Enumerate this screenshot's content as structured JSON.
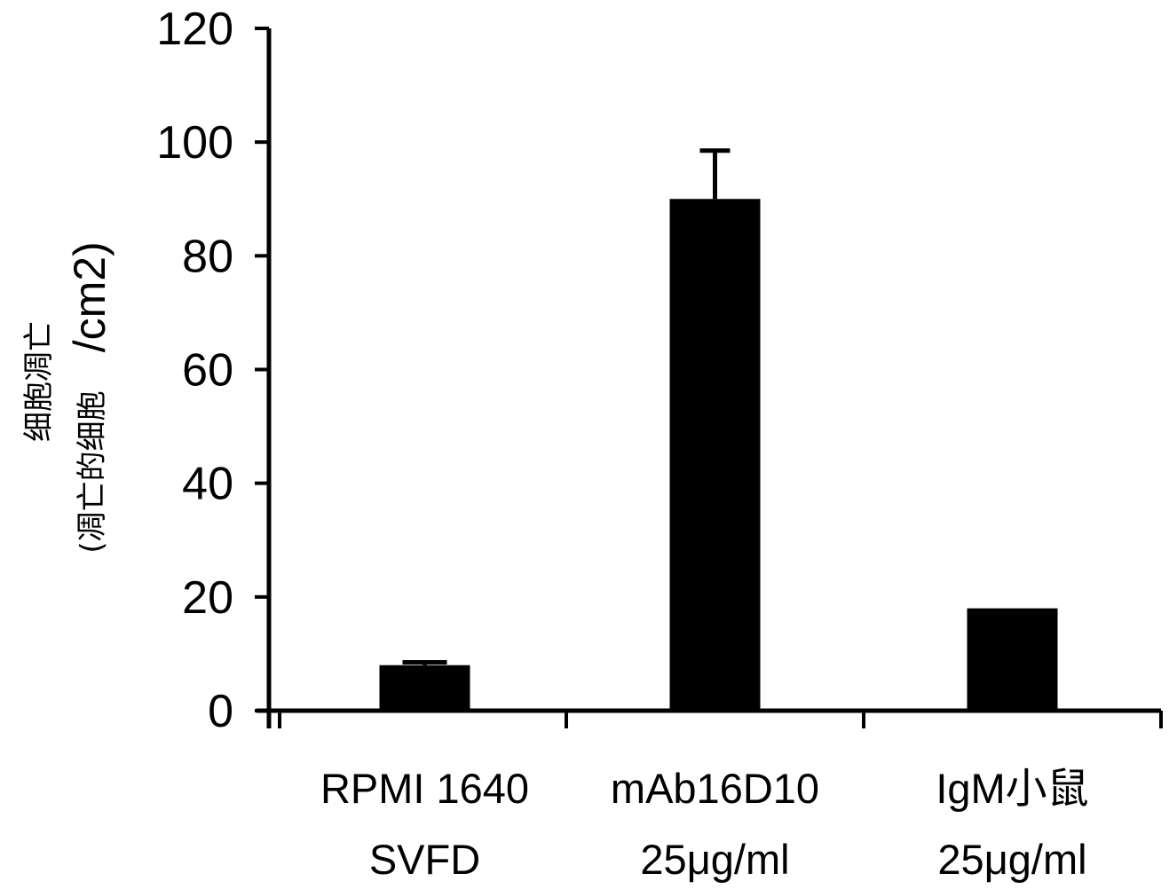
{
  "chart_data": {
    "type": "bar",
    "categories": [
      [
        "RPMI 1640",
        "SVFD"
      ],
      [
        "mAb16D10",
        "25μg/ml"
      ],
      [
        "IgM小鼠",
        "25μg/ml"
      ]
    ],
    "values": [
      8,
      90,
      18
    ],
    "errors": [
      0.5,
      8.5,
      0
    ],
    "ylim": [
      0,
      120
    ],
    "yticks": [
      0,
      20,
      40,
      60,
      80,
      100,
      120
    ],
    "ylabel": {
      "line1": "细胞凋亡",
      "line2": "(凋亡的细胞",
      "unit": "/cm2)"
    },
    "xlabel": "",
    "title": "",
    "bar_color": "#000000",
    "grid": false,
    "legend": "none"
  }
}
